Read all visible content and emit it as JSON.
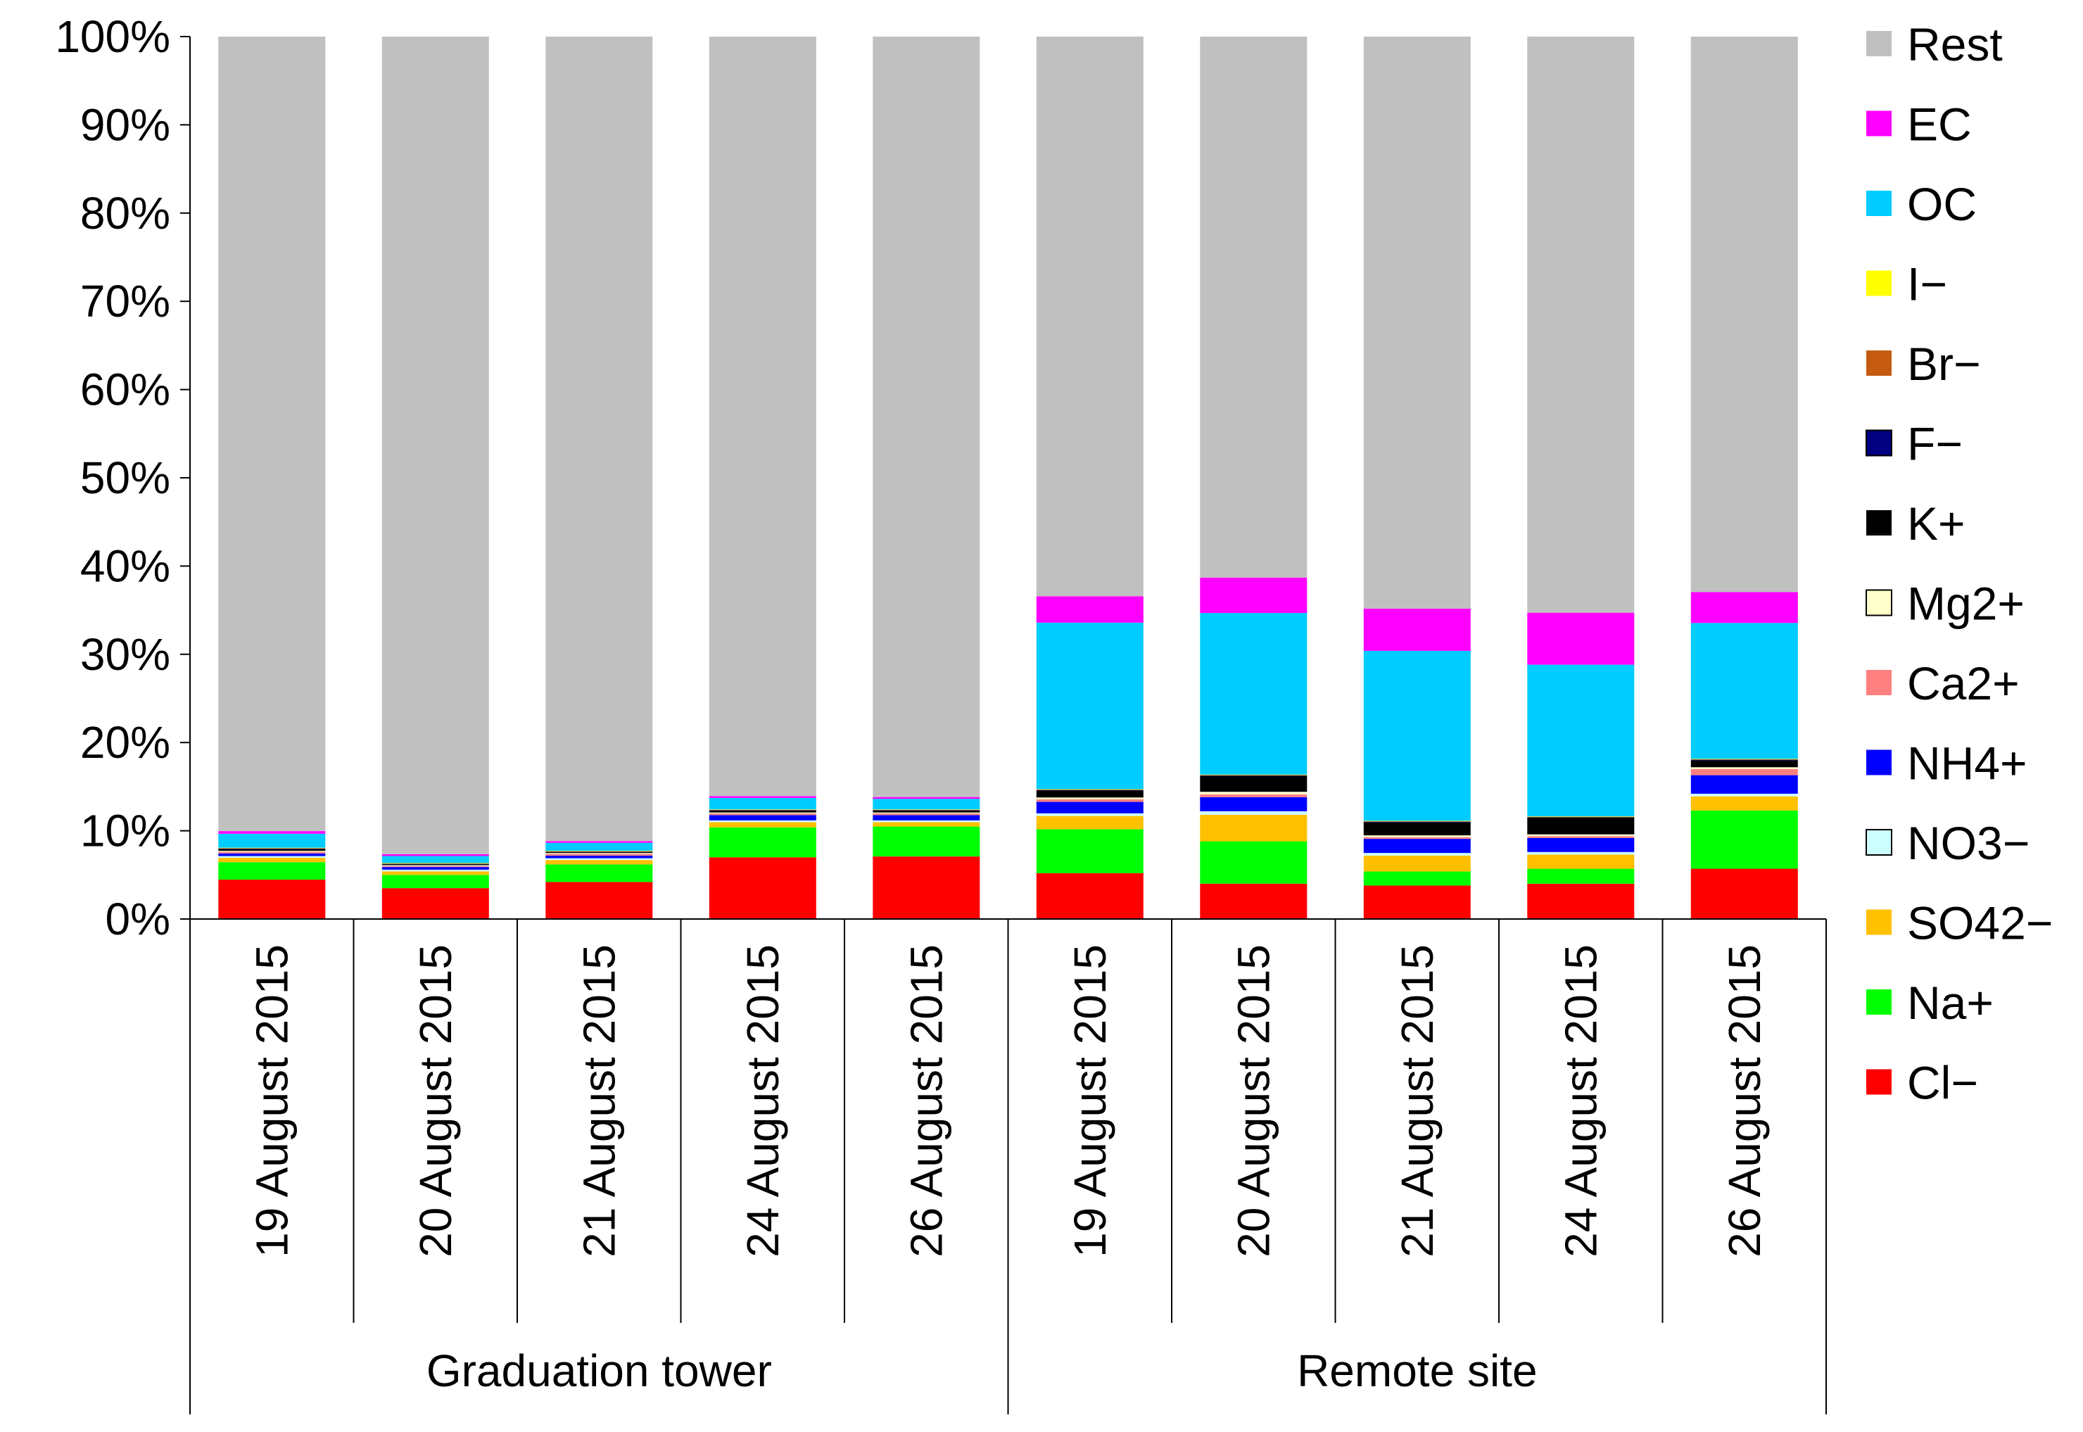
{
  "chart_data": {
    "type": "bar",
    "stacked": true,
    "percent": true,
    "title": "",
    "xlabel": "",
    "ylabel": "",
    "ylim": [
      0,
      100
    ],
    "yticks": [
      "0%",
      "10%",
      "20%",
      "30%",
      "40%",
      "50%",
      "60%",
      "70%",
      "80%",
      "90%",
      "100%"
    ],
    "categories": [
      "19 August 2015",
      "20 August 2015",
      "21 August 2015",
      "24 August 2015",
      "26 August 2015",
      "19 August 2015",
      "20 August 2015",
      "21 August 2015",
      "24 August 2015",
      "26 August 2015"
    ],
    "groups": [
      {
        "label": "Graduation tower",
        "count": 5
      },
      {
        "label": "Remote site",
        "count": 5
      }
    ],
    "legend_position": "right",
    "series": [
      {
        "name": "Cl−",
        "color": "#ff0000",
        "values": [
          4.5,
          3.5,
          4.2,
          7.0,
          7.1,
          5.2,
          4.0,
          3.8,
          4.0,
          5.7
        ]
      },
      {
        "name": "Na+",
        "color": "#00ff00",
        "values": [
          2.0,
          1.5,
          2.0,
          3.4,
          3.4,
          5.0,
          4.8,
          1.6,
          1.7,
          6.6
        ]
      },
      {
        "name": "SO42−",
        "color": "#ffc000",
        "values": [
          0.5,
          0.4,
          0.5,
          0.6,
          0.5,
          1.5,
          3.0,
          1.8,
          1.6,
          1.6
        ]
      },
      {
        "name": "NO3−",
        "color": "#ccffff",
        "values": [
          0.2,
          0.2,
          0.2,
          0.2,
          0.2,
          0.3,
          0.4,
          0.3,
          0.3,
          0.3
        ]
      },
      {
        "name": "NH4+",
        "color": "#0000ff",
        "values": [
          0.3,
          0.3,
          0.3,
          0.6,
          0.6,
          1.3,
          1.6,
          1.6,
          1.6,
          2.1
        ]
      },
      {
        "name": "Ca2+",
        "color": "#ff8080",
        "values": [
          0.2,
          0.1,
          0.2,
          0.2,
          0.2,
          0.3,
          0.3,
          0.2,
          0.2,
          0.7
        ]
      },
      {
        "name": "Mg2+",
        "color": "#ffffcc",
        "values": [
          0.1,
          0.1,
          0.1,
          0.1,
          0.1,
          0.2,
          0.3,
          0.2,
          0.2,
          0.2
        ]
      },
      {
        "name": "K+",
        "color": "#000000",
        "values": [
          0.2,
          0.1,
          0.1,
          0.2,
          0.2,
          0.8,
          1.8,
          1.5,
          1.9,
          0.8
        ]
      },
      {
        "name": "F−",
        "color": "#000080",
        "values": [
          0.05,
          0.05,
          0.05,
          0.05,
          0.05,
          0.05,
          0.05,
          0.05,
          0.05,
          0.05
        ]
      },
      {
        "name": "Br−",
        "color": "#c55a11",
        "values": [
          0.05,
          0.05,
          0.05,
          0.05,
          0.05,
          0.05,
          0.05,
          0.05,
          0.05,
          0.05
        ]
      },
      {
        "name": "I−",
        "color": "#ffff00",
        "values": [
          0.05,
          0.05,
          0.05,
          0.05,
          0.05,
          0.05,
          0.05,
          0.05,
          0.05,
          0.05
        ]
      },
      {
        "name": "OC",
        "color": "#00ccff",
        "values": [
          1.6,
          0.8,
          0.9,
          1.3,
          1.2,
          18.9,
          18.3,
          19.3,
          17.2,
          15.4
        ]
      },
      {
        "name": "EC",
        "color": "#ff00ff",
        "values": [
          0.3,
          0.2,
          0.2,
          0.2,
          0.2,
          3.0,
          4.0,
          4.8,
          5.9,
          3.5
        ]
      },
      {
        "name": "Rest",
        "color": "#c0c0c0",
        "values": [
          90.85,
          92.75,
          91.35,
          86.25,
          86.35,
          63.55,
          61.25,
          64.95,
          65.35,
          62.95
        ]
      }
    ]
  }
}
